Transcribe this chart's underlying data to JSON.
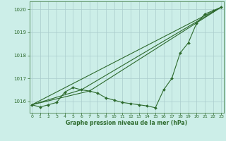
{
  "background_color": "#cceee8",
  "grid_color": "#aacccc",
  "line_color": "#2d6a2d",
  "marker_color": "#2d6a2d",
  "xlabel": "Graphe pression niveau de la mer (hPa)",
  "xlabel_color": "#2d6a2d",
  "tick_color": "#2d6a2d",
  "ylim": [
    1015.5,
    1020.35
  ],
  "xlim": [
    -0.3,
    23.3
  ],
  "yticks": [
    1016,
    1017,
    1018,
    1019,
    1020
  ],
  "xticks": [
    0,
    1,
    2,
    3,
    4,
    5,
    6,
    7,
    8,
    9,
    10,
    11,
    12,
    13,
    14,
    15,
    16,
    17,
    18,
    19,
    20,
    21,
    22,
    23
  ],
  "series": [
    {
      "x": [
        0,
        1,
        2,
        3,
        4,
        5,
        6,
        7,
        8,
        9,
        10,
        11,
        12,
        13,
        14,
        15,
        16,
        17,
        18,
        19,
        20,
        21,
        22,
        23
      ],
      "y": [
        1015.85,
        1015.75,
        1015.85,
        1015.95,
        1016.4,
        1016.6,
        1016.5,
        1016.45,
        1016.35,
        1016.15,
        1016.05,
        1015.95,
        1015.9,
        1015.85,
        1015.8,
        1015.72,
        1016.5,
        1017.0,
        1018.1,
        1018.55,
        1019.4,
        1019.8,
        1019.95,
        1020.1
      ],
      "marker": "D",
      "markersize": 2.0,
      "linewidth": 0.8,
      "zorder": 3
    },
    {
      "x": [
        0,
        23
      ],
      "y": [
        1015.85,
        1020.1
      ],
      "marker": null,
      "markersize": 0,
      "linewidth": 0.8,
      "zorder": 2
    },
    {
      "x": [
        0,
        6,
        23
      ],
      "y": [
        1015.85,
        1016.5,
        1020.1
      ],
      "marker": null,
      "markersize": 0,
      "linewidth": 0.8,
      "zorder": 2
    },
    {
      "x": [
        0,
        7,
        23
      ],
      "y": [
        1015.85,
        1016.45,
        1020.1
      ],
      "marker": null,
      "markersize": 0,
      "linewidth": 0.8,
      "zorder": 2
    }
  ],
  "figsize": [
    3.2,
    2.0
  ],
  "dpi": 100
}
